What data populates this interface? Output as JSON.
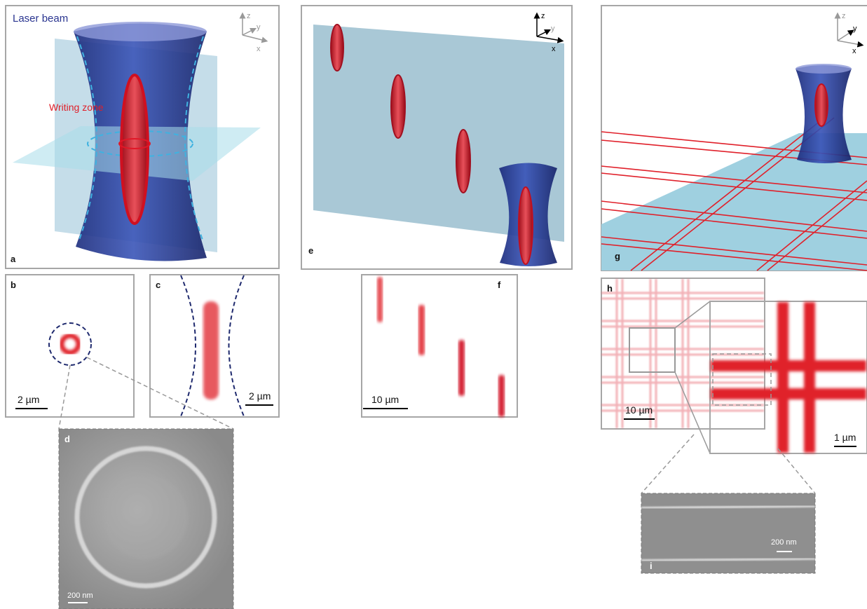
{
  "panel_a": {
    "label": "a",
    "title": "Laser beam",
    "annotation": "Writing zone",
    "axis_labels": [
      "z",
      "y",
      "x"
    ]
  },
  "panel_b": {
    "label": "b",
    "scale_bar": "2 µm"
  },
  "panel_c": {
    "label": "c",
    "scale_bar": "2 µm"
  },
  "panel_d": {
    "label": "d",
    "scale_bar": "200 nm"
  },
  "panel_e": {
    "label": "e",
    "axis_labels": [
      "z",
      "y",
      "x"
    ]
  },
  "panel_f": {
    "label": "f",
    "scale_bar": "10 µm"
  },
  "panel_g": {
    "label": "g",
    "axis_labels": [
      "z",
      "y",
      "x"
    ]
  },
  "panel_h": {
    "label": "h",
    "scale_bar": "10 µm",
    "inset_scale_bar": "1 µm"
  },
  "panel_i": {
    "label": "i",
    "scale_bar": "200 nm"
  }
}
